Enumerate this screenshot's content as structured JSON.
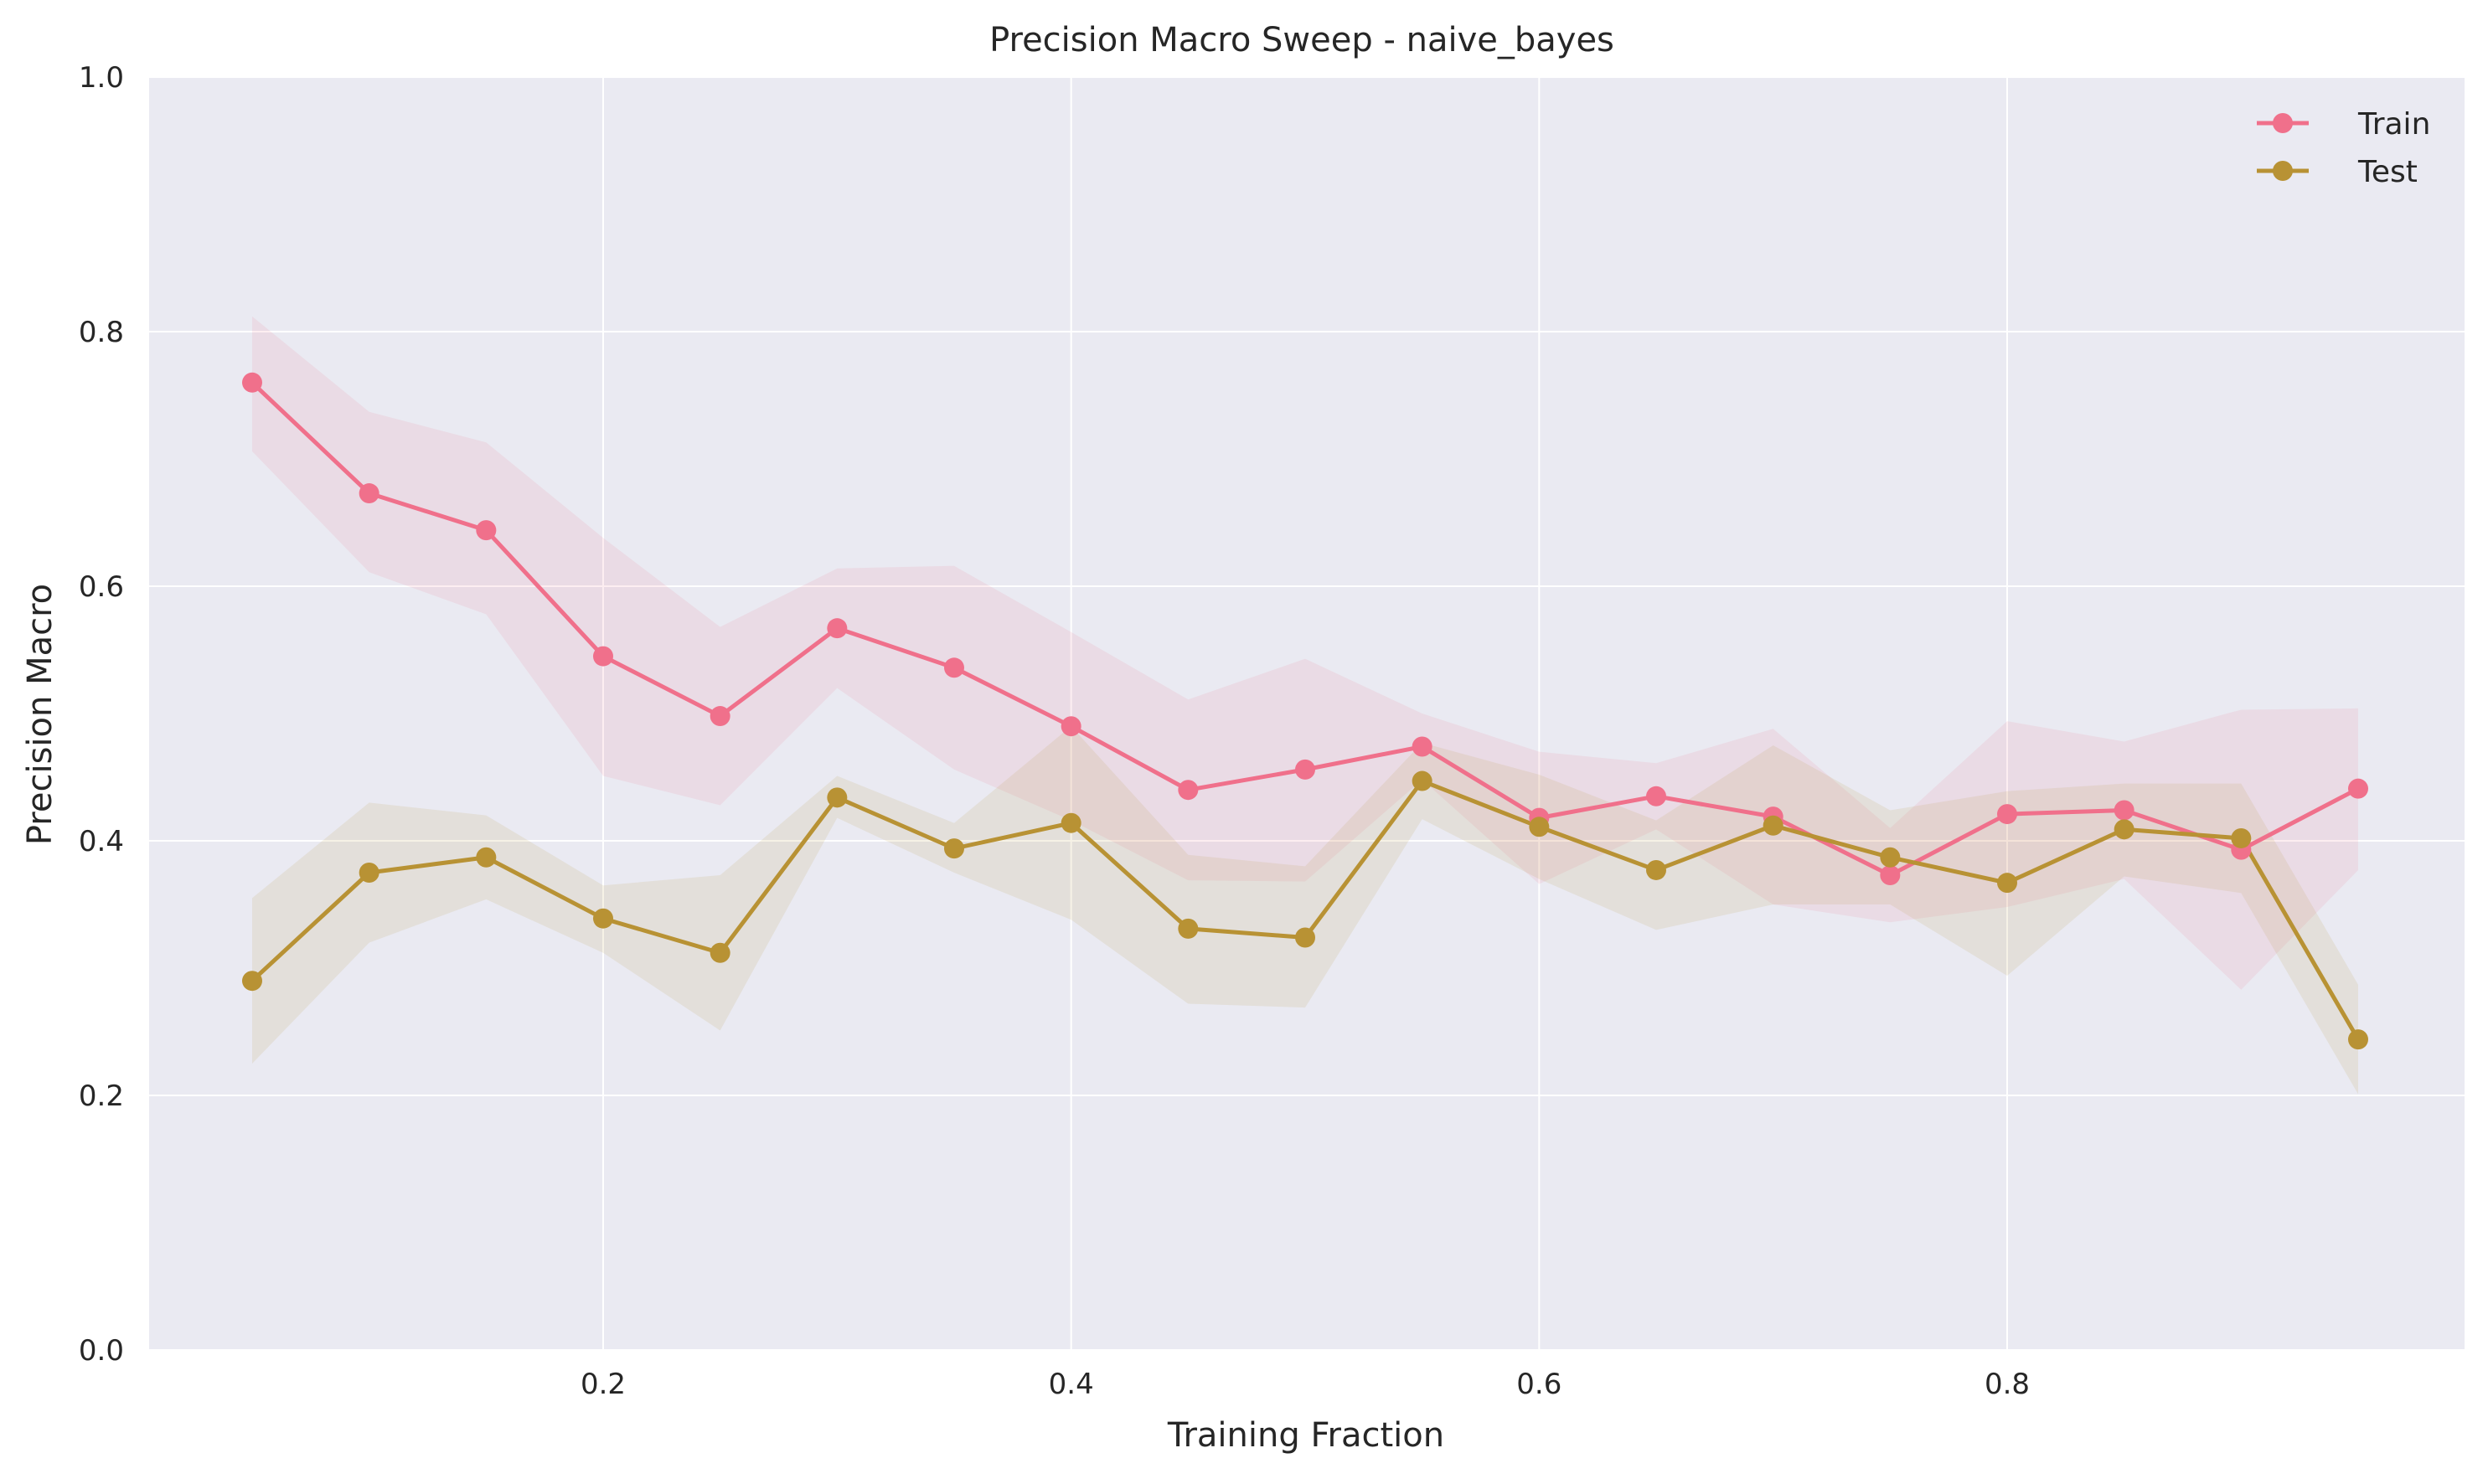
{
  "chart_data": {
    "type": "line",
    "title": "Precision Macro Sweep - naive_bayes",
    "xlabel": "Training Fraction",
    "ylabel": "Precision Macro",
    "xlim": [
      0.0,
      1.0
    ],
    "ylim": [
      0.0,
      1.0
    ],
    "xticks": [
      0.2,
      0.4,
      0.6,
      0.8
    ],
    "xtick_labels": [
      "0.2",
      "0.4",
      "0.6",
      "0.8"
    ],
    "yticks": [
      0.0,
      0.2,
      0.4,
      0.6,
      0.8,
      1.0
    ],
    "ytick_labels": [
      "0.0",
      "0.2",
      "0.4",
      "0.6",
      "0.8",
      "1.0"
    ],
    "grid": true,
    "legend_position": "top-right",
    "x": [
      0.05,
      0.1,
      0.15,
      0.2,
      0.25,
      0.3,
      0.35,
      0.4,
      0.45,
      0.5,
      0.55,
      0.6,
      0.65,
      0.7,
      0.75,
      0.8,
      0.85,
      0.9,
      0.95
    ],
    "series": [
      {
        "name": "Train",
        "color": "#f0708b",
        "values": [
          0.76,
          0.673,
          0.644,
          0.545,
          0.498,
          0.567,
          0.536,
          0.49,
          0.44,
          0.456,
          0.474,
          0.418,
          0.435,
          0.419,
          0.373,
          0.421,
          0.424,
          0.393,
          0.441
        ],
        "band_upper": [
          0.812,
          0.737,
          0.713,
          0.638,
          0.568,
          0.614,
          0.616,
          0.564,
          0.511,
          0.543,
          0.5,
          0.47,
          0.461,
          0.488,
          0.41,
          0.494,
          0.478,
          0.503,
          0.504
        ],
        "band_lower": [
          0.706,
          0.611,
          0.578,
          0.451,
          0.428,
          0.52,
          0.456,
          0.416,
          0.369,
          0.368,
          0.448,
          0.366,
          0.409,
          0.35,
          0.336,
          0.348,
          0.37,
          0.283,
          0.377
        ]
      },
      {
        "name": "Test",
        "color": "#b89234",
        "values": [
          0.29,
          0.375,
          0.387,
          0.339,
          0.312,
          0.434,
          0.394,
          0.414,
          0.331,
          0.324,
          0.447,
          0.411,
          0.377,
          0.412,
          0.387,
          0.367,
          0.409,
          0.402,
          0.244
        ],
        "band_upper": [
          0.355,
          0.43,
          0.42,
          0.365,
          0.373,
          0.451,
          0.414,
          0.49,
          0.389,
          0.38,
          0.477,
          0.452,
          0.416,
          0.475,
          0.424,
          0.439,
          0.445,
          0.445,
          0.287
        ],
        "band_lower": [
          0.225,
          0.32,
          0.354,
          0.312,
          0.251,
          0.418,
          0.375,
          0.338,
          0.272,
          0.269,
          0.417,
          0.37,
          0.33,
          0.35,
          0.35,
          0.294,
          0.372,
          0.359,
          0.201
        ]
      }
    ]
  }
}
